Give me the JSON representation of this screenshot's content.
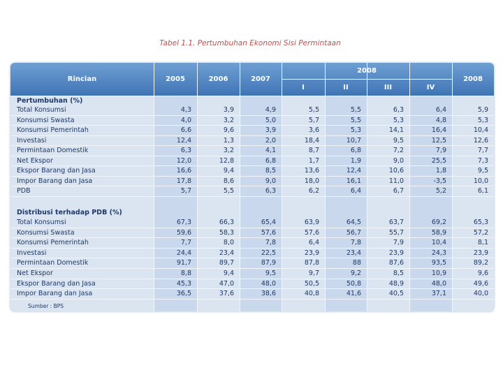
{
  "title": "Tabel 1.1. Pertumbuhan Ekonomi Sisi Permintaan",
  "header": {
    "rincian": "Rincian",
    "years": [
      "2005",
      "2006",
      "2007"
    ],
    "year_group": "2008",
    "quarters": [
      "I",
      "II",
      "III",
      "IV"
    ],
    "year_total": "2008"
  },
  "sections": [
    {
      "title": "Pertumbuhan (%)",
      "rows": [
        {
          "label": "Total Konsumsi",
          "values": [
            "4,3",
            "3,9",
            "4,9",
            "5,5",
            "5,5",
            "6,3",
            "6,4",
            "5,9"
          ]
        },
        {
          "label": "Konsumsi Swasta",
          "values": [
            "4,0",
            "3,2",
            "5,0",
            "5,7",
            "5,5",
            "5,3",
            "4,8",
            "5,3"
          ]
        },
        {
          "label": "Konsumsi Pemerintah",
          "values": [
            "6,6",
            "9,6",
            "3,9",
            "3,6",
            "5,3",
            "14,1",
            "16,4",
            "10,4"
          ]
        },
        {
          "label": "Investasi",
          "values": [
            "12,4",
            "1,3",
            "2,0",
            "18,4",
            "10,7",
            "9,5",
            "12,5",
            "12,6"
          ]
        },
        {
          "label": "Permintaan Domestik",
          "values": [
            "6,3",
            "3,2",
            "4,1",
            "8,7",
            "6,8",
            "7,2",
            "7,9",
            "7,7"
          ]
        },
        {
          "label": "Net Ekspor",
          "values": [
            "12,0",
            "12,8",
            "6,8",
            "1,7",
            "1,9",
            "9,0",
            "25,5",
            "7,3"
          ]
        },
        {
          "label": "Ekspor Barang dan Jasa",
          "values": [
            "16,6",
            "9,4",
            "8,5",
            "13,6",
            "12,4",
            "10,6",
            "1,8",
            "9,5"
          ]
        },
        {
          "label": "Impor Barang dan Jasa",
          "values": [
            "17,8",
            "8,6",
            "9,0",
            "18,0",
            "16,1",
            "11,0",
            "-3,5",
            "10,0"
          ]
        },
        {
          "label": "PDB",
          "values": [
            "5,7",
            "5,5",
            "6,3",
            "6,2",
            "6,4",
            "6,7",
            "5,2",
            "6,1"
          ]
        }
      ]
    },
    {
      "title": "Distribusi terhadap PDB (%)",
      "rows": [
        {
          "label": "Total Konsumsi",
          "values": [
            "67,3",
            "66,3",
            "65,4",
            "63,9",
            "64,5",
            "63,7",
            "69,2",
            "65,3"
          ]
        },
        {
          "label": "Konsumsi Swasta",
          "values": [
            "59,6",
            "58,3",
            "57,6",
            "57,6",
            "56,7",
            "55,7",
            "58,9",
            "57,2"
          ]
        },
        {
          "label": "Konsumsi Pemerintah",
          "values": [
            "7,7",
            "8,0",
            "7,8",
            "6,4",
            "7,8",
            "7,9",
            "10,4",
            "8,1"
          ]
        },
        {
          "label": "Investasi",
          "values": [
            "24,4",
            "23,4",
            "22,5",
            "23,9",
            "23,4",
            "23,9",
            "24,3",
            "23,9"
          ]
        },
        {
          "label": "Permintaan Domestik",
          "values": [
            "91,7",
            "89,7",
            "87,9",
            "87,8",
            "88",
            "87,6",
            "93,5",
            "89,2"
          ]
        },
        {
          "label": "Net Ekspor",
          "values": [
            "8,8",
            "9,4",
            "9,5",
            "9,7",
            "9,2",
            "8,5",
            "10,9",
            "9,6"
          ]
        },
        {
          "label": "Ekspor Barang dan Jasa",
          "values": [
            "45,3",
            "47,0",
            "48,0",
            "50,5",
            "50,8",
            "48,9",
            "48,0",
            "49,6"
          ]
        },
        {
          "label": "Impor Barang dan Jasa",
          "values": [
            "36,5",
            "37,6",
            "38,6",
            "40,8",
            "41,6",
            "40,5",
            "37,1",
            "40,0"
          ]
        }
      ]
    }
  ],
  "source": "Sumber : BPS"
}
